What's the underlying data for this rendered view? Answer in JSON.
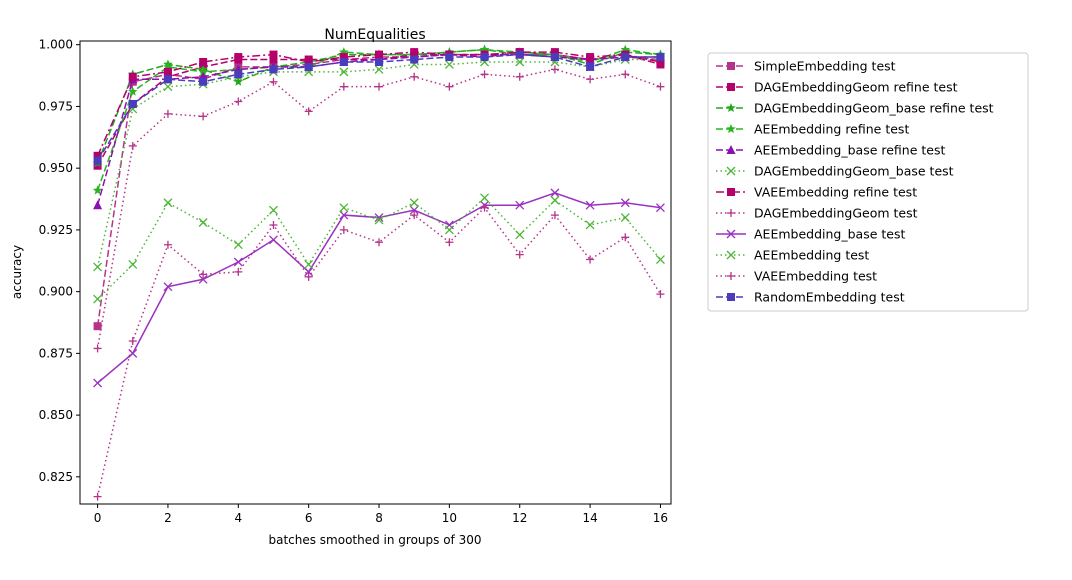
{
  "chart_data": {
    "type": "line",
    "title": "NumEqualities",
    "xlabel": "batches smoothed in groups of 300",
    "ylabel": "accuracy",
    "xlim": [
      -0.5,
      16.3
    ],
    "ylim": [
      0.814,
      1.0015
    ],
    "xticks": [
      0,
      2,
      4,
      6,
      8,
      10,
      12,
      14,
      16
    ],
    "xtick_labels": [
      "0",
      "2",
      "4",
      "6",
      "8",
      "10",
      "12",
      "14",
      "16"
    ],
    "yticks": [
      0.825,
      0.85,
      0.875,
      0.9,
      0.925,
      0.95,
      0.975,
      1.0
    ],
    "ytick_labels": [
      "0.825",
      "0.850",
      "0.875",
      "0.900",
      "0.925",
      "0.950",
      "0.975",
      "1.000"
    ],
    "legend_position": "outside-right",
    "grid": false,
    "x": [
      0,
      1,
      2,
      3,
      4,
      5,
      6,
      7,
      8,
      9,
      10,
      11,
      12,
      13,
      14,
      15,
      16
    ],
    "series": [
      {
        "name": "SimpleEmbedding test",
        "color": "#b5338a",
        "marker": "square",
        "dash": "dashed",
        "values": [
          0.886,
          0.985,
          0.988,
          0.986,
          0.991,
          0.991,
          0.992,
          0.994,
          0.995,
          0.995,
          0.996,
          0.996,
          0.996,
          0.996,
          0.994,
          0.995,
          0.994
        ]
      },
      {
        "name": "DAGEmbeddingGeom refine test",
        "color": "#b5006c",
        "marker": "square",
        "dash": "dashed",
        "values": [
          0.951,
          0.976,
          0.987,
          0.991,
          0.994,
          0.994,
          0.994,
          0.994,
          0.994,
          0.996,
          0.996,
          0.995,
          0.997,
          0.996,
          0.994,
          0.996,
          0.992
        ]
      },
      {
        "name": "DAGEmbeddingGeom_base refine test",
        "color": "#22a81c",
        "marker": "star",
        "dash": "dashed",
        "values": [
          0.952,
          0.988,
          0.992,
          0.99,
          0.985,
          0.991,
          0.993,
          0.996,
          0.996,
          0.996,
          0.997,
          0.998,
          0.996,
          0.996,
          0.992,
          0.997,
          0.996
        ]
      },
      {
        "name": "AEEmbedding refine test",
        "color": "#2ab520",
        "marker": "star",
        "dash": "dashed",
        "values": [
          0.941,
          0.981,
          0.991,
          0.989,
          0.99,
          0.991,
          0.991,
          0.997,
          0.996,
          0.996,
          0.997,
          0.998,
          0.997,
          0.996,
          0.993,
          0.998,
          0.996
        ]
      },
      {
        "name": "AEEmbedding_base refine test",
        "color": "#8a10b0",
        "marker": "triangle",
        "dash": "dashed",
        "values": [
          0.935,
          0.986,
          0.986,
          0.987,
          0.99,
          0.991,
          0.991,
          0.993,
          0.994,
          0.995,
          0.996,
          0.996,
          0.996,
          0.995,
          0.994,
          0.995,
          0.995
        ]
      },
      {
        "name": "DAGEmbeddingGeom_base test",
        "color": "#4cb535",
        "marker": "x",
        "dash": "dotted",
        "values": [
          0.91,
          0.974,
          0.983,
          0.984,
          0.987,
          0.989,
          0.989,
          0.989,
          0.99,
          0.992,
          0.992,
          0.993,
          0.993,
          0.993,
          0.991,
          0.994,
          0.994
        ]
      },
      {
        "name": "VAEEmbedding refine test",
        "color": "#b5006c",
        "marker": "square",
        "dash": "dashdot",
        "values": [
          0.955,
          0.987,
          0.989,
          0.993,
          0.995,
          0.996,
          0.993,
          0.995,
          0.996,
          0.997,
          0.996,
          0.996,
          0.997,
          0.997,
          0.995,
          0.996,
          0.993
        ]
      },
      {
        "name": "DAGEmbeddingGeom test",
        "color": "#b5338a",
        "marker": "plus",
        "dash": "dotted",
        "values": [
          0.877,
          0.959,
          0.972,
          0.971,
          0.977,
          0.985,
          0.973,
          0.983,
          0.983,
          0.987,
          0.983,
          0.988,
          0.987,
          0.99,
          0.986,
          0.988,
          0.983
        ]
      },
      {
        "name": "AEEmbedding_base test",
        "color": "#9a30c0",
        "marker": "x",
        "dash": "solid",
        "values": [
          0.863,
          0.875,
          0.902,
          0.905,
          0.912,
          0.921,
          0.908,
          0.931,
          0.93,
          0.933,
          0.927,
          0.935,
          0.935,
          0.94,
          0.935,
          0.936,
          0.934
        ]
      },
      {
        "name": "AEEmbedding test",
        "color": "#4cb535",
        "marker": "x",
        "dash": "dotted",
        "values": [
          0.897,
          0.911,
          0.936,
          0.928,
          0.919,
          0.933,
          0.911,
          0.934,
          0.929,
          0.936,
          0.925,
          0.938,
          0.923,
          0.937,
          0.927,
          0.93,
          0.913
        ]
      },
      {
        "name": "VAEEmbedding test",
        "color": "#b5338a",
        "marker": "plus",
        "dash": "dotted",
        "values": [
          0.817,
          0.88,
          0.919,
          0.907,
          0.908,
          0.927,
          0.906,
          0.925,
          0.92,
          0.931,
          0.92,
          0.934,
          0.915,
          0.931,
          0.913,
          0.922,
          0.899
        ]
      },
      {
        "name": "RandomEmbedding test",
        "color": "#4b3bbd",
        "marker": "square",
        "dash": "dashed",
        "values": [
          0.953,
          0.976,
          0.986,
          0.985,
          0.988,
          0.99,
          0.991,
          0.993,
          0.993,
          0.994,
          0.995,
          0.995,
          0.996,
          0.995,
          0.991,
          0.995,
          0.995
        ]
      }
    ]
  }
}
